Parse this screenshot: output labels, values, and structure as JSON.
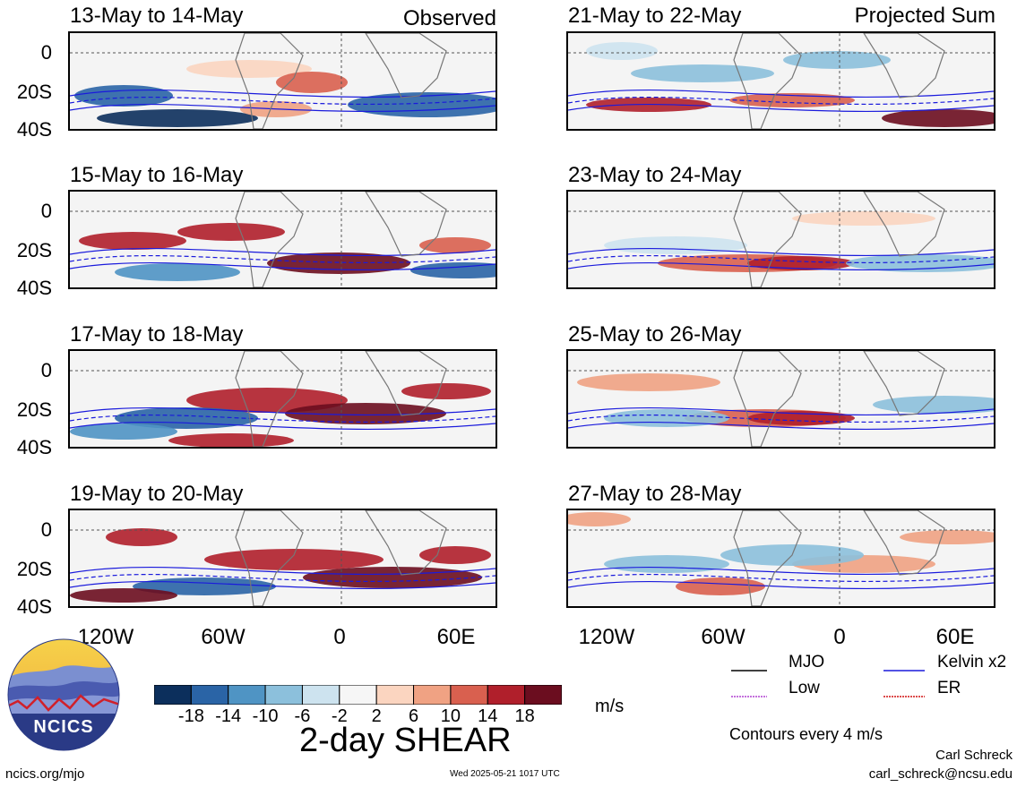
{
  "header": {
    "left_tag": "Observed",
    "right_tag": "Projected Sum"
  },
  "panels": [
    {
      "title": "13-May to 14-May"
    },
    {
      "title": "15-May to 16-May"
    },
    {
      "title": "17-May to 18-May"
    },
    {
      "title": "19-May to 20-May"
    },
    {
      "title": "21-May to 22-May"
    },
    {
      "title": "23-May to 24-May"
    },
    {
      "title": "25-May to 26-May"
    },
    {
      "title": "27-May to 28-May"
    }
  ],
  "axes": {
    "lat_ticks": [
      "0",
      "20S",
      "40S"
    ],
    "lon_ticks": [
      "120W",
      "60W",
      "0",
      "60E"
    ]
  },
  "legend": {
    "mjo": "MJO",
    "kelvin": "Kelvin x2",
    "low": "Low",
    "er": "ER",
    "colors": {
      "mjo": "#000000",
      "kelvin": "#1a1adc",
      "low": "#b040d0",
      "er": "#d01010"
    },
    "contour_note": "Contours every 4 m/s"
  },
  "colorbar": {
    "labels": [
      "-18",
      "-14",
      "-10",
      "-6",
      "-2",
      "2",
      "6",
      "10",
      "14",
      "18"
    ],
    "colors": [
      "#0c2f5c",
      "#2a64a6",
      "#4f94c4",
      "#8cc0dc",
      "#cde3ef",
      "#f6f6f6",
      "#fbd5c0",
      "#f0a283",
      "#d9604f",
      "#b01f2b",
      "#6b0d1f"
    ],
    "units": "m/s",
    "title": "2-day SHEAR"
  },
  "logo": {
    "text": "NCICS"
  },
  "footer": {
    "url": "ncics.org/mjo",
    "timestamp": "Wed 2025-05-21 1017 UTC",
    "author": "Carl Schreck",
    "email": "carl_schreck@ncsu.edu"
  }
}
